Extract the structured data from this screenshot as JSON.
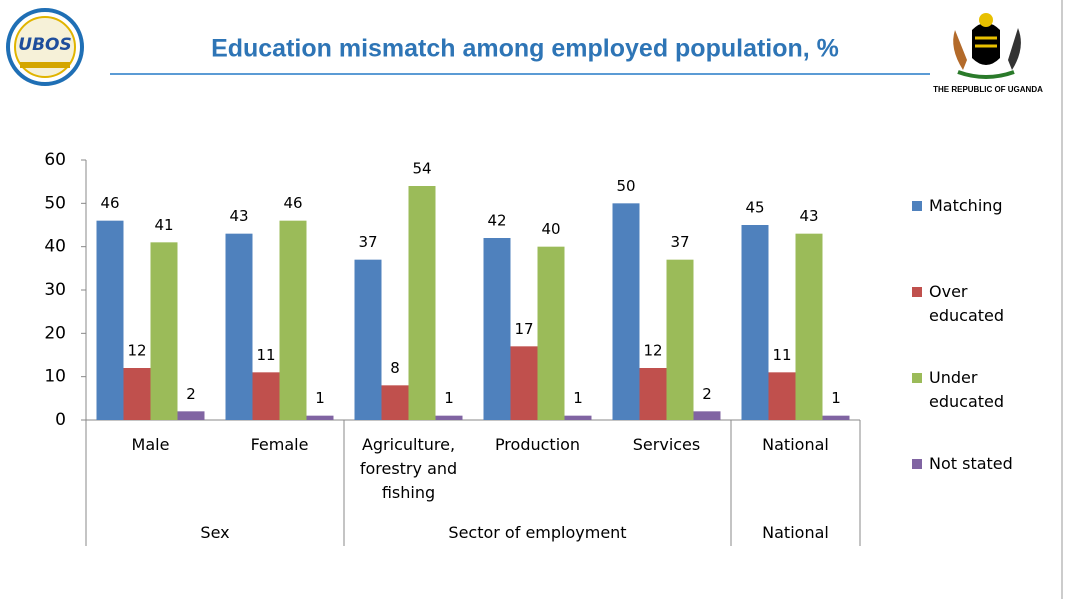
{
  "header": {
    "logo_text": "UBOS",
    "title": "Education  mismatch among employed population, %",
    "emblem_caption": "THE REPUBLIC OF UGANDA"
  },
  "chart_data": {
    "type": "bar",
    "groups": [
      {
        "name": "Sex",
        "categories": [
          "Male",
          "Female"
        ]
      },
      {
        "name": "Sector of employment",
        "categories": [
          "Agriculture, forestry and fishing",
          "Production",
          "Services"
        ]
      },
      {
        "name": "National",
        "categories": [
          "National"
        ]
      }
    ],
    "series": [
      {
        "name": "Matching",
        "color": "#4f81bd",
        "values": [
          46,
          43,
          37,
          42,
          50,
          45
        ]
      },
      {
        "name": "Over educated",
        "color": "#c0504d",
        "values": [
          12,
          11,
          8,
          17,
          12,
          11
        ]
      },
      {
        "name": "Under educated",
        "color": "#9bbb59",
        "values": [
          41,
          46,
          54,
          40,
          37,
          43
        ]
      },
      {
        "name": "Not stated",
        "color": "#8064a2",
        "values": [
          2,
          1,
          1,
          1,
          2,
          1
        ]
      }
    ],
    "ylim": [
      0,
      60
    ],
    "yticks": [
      0,
      10,
      20,
      30,
      40,
      50,
      60
    ],
    "legend": "right"
  }
}
